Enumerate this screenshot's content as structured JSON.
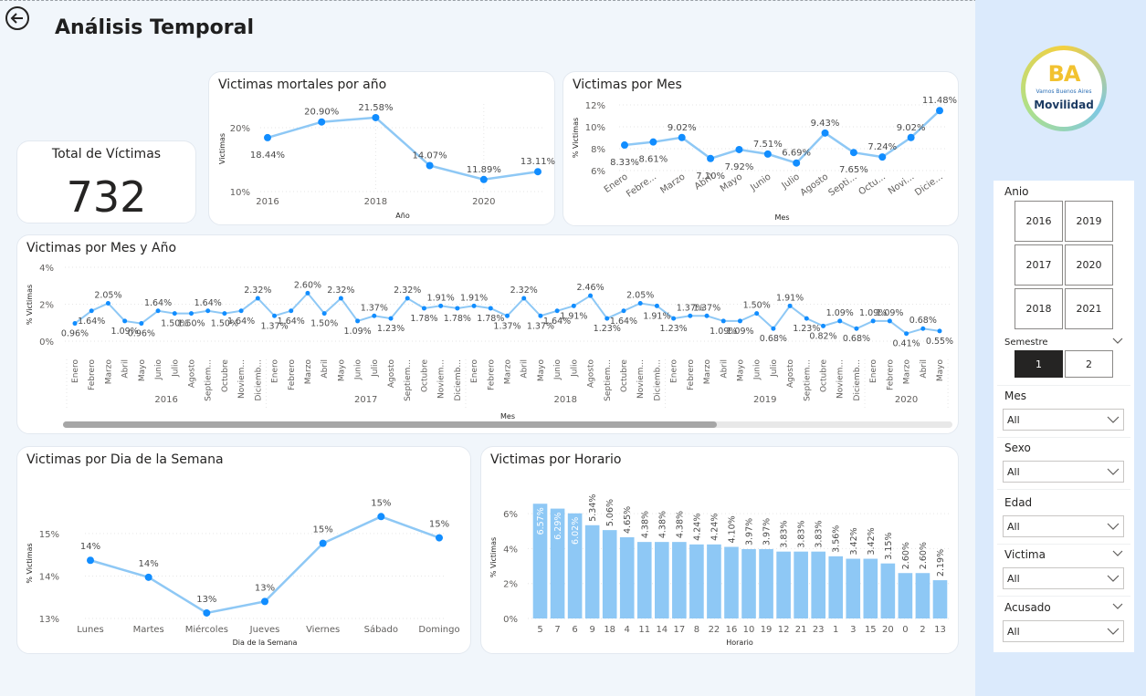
{
  "page": {
    "title": "Análisis Temporal"
  },
  "kpi": {
    "label": "Total de Víctimas",
    "value": "732"
  },
  "colors": {
    "line": "#8ec8f5",
    "marker": "#118dff",
    "bar": "#8ec8f5",
    "side_bg": "#dbeafc"
  },
  "logo": {
    "text": "BA",
    "subtitle": "Vamos Buenos Aires",
    "name": "Movilidad"
  },
  "slicers": {
    "anio": {
      "label": "Anio",
      "years": [
        "2016",
        "2019",
        "2017",
        "2020",
        "2018",
        "2021"
      ]
    },
    "semestre": {
      "label": "Semestre",
      "options": [
        "1",
        "2"
      ],
      "selected": "1"
    },
    "mes": {
      "label": "Mes",
      "value": "All"
    },
    "sexo": {
      "label": "Sexo",
      "value": "All"
    },
    "edad": {
      "label": "Edad",
      "value": "All"
    },
    "victima": {
      "label": "Victima",
      "value": "All"
    },
    "acusado": {
      "label": "Acusado",
      "value": "All"
    }
  },
  "chart_data": [
    {
      "id": "year",
      "type": "line",
      "title": "Victimas mortales por año",
      "xlabel": "Año",
      "ylabel": "Victimas",
      "x": [
        "2016",
        "2017",
        "2018",
        "2019",
        "2020",
        "2021"
      ],
      "xticks": [
        "2016",
        "2018",
        "2020"
      ],
      "values": [
        18.44,
        20.9,
        21.58,
        14.07,
        11.89,
        13.11
      ],
      "labels": [
        "18.44%",
        "20.90%",
        "21.58%",
        "14.07%",
        "11.89%",
        "13.11%"
      ],
      "yticks": [
        "10%",
        "20%"
      ],
      "ylim": [
        10,
        23
      ]
    },
    {
      "id": "month",
      "type": "line",
      "title": "Victimas por Mes",
      "xlabel": "Mes",
      "ylabel": "% Victimas",
      "categories": [
        "Enero",
        "Febre...",
        "Marzo",
        "Abril",
        "Mayo",
        "Junio",
        "Julio",
        "Agosto",
        "Septi...",
        "Octu...",
        "Novi...",
        "Dicie..."
      ],
      "values": [
        8.33,
        8.61,
        9.02,
        7.1,
        7.92,
        7.51,
        6.69,
        9.43,
        7.65,
        7.24,
        9.02,
        11.48
      ],
      "labels": [
        "8.33%",
        "8.61%",
        "9.02%",
        "7.10%",
        "7.92%",
        "7.51%",
        "6.69%",
        "9.43%",
        "7.65%",
        "7.24%",
        "9.02%",
        "11.48%"
      ],
      "yticks": [
        "6%",
        "8%",
        "10%",
        "12%"
      ],
      "ylim": [
        6,
        12
      ]
    },
    {
      "id": "monthyear",
      "type": "line",
      "title": "Victimas por Mes y Año",
      "xlabel": "Mes",
      "ylabel": "% Victimas",
      "categories": [
        "Enero",
        "Febrero",
        "Marzo",
        "Abril",
        "Mayo",
        "Junio",
        "Julio",
        "Agosto",
        "Septiem...",
        "Octubre",
        "Noviem...",
        "Diciemb...",
        "Enero",
        "Febrero",
        "Marzo",
        "Abril",
        "Mayo",
        "Junio",
        "Julio",
        "Agosto",
        "Septiem...",
        "Octubre",
        "Noviem...",
        "Diciemb...",
        "Enero",
        "Febrero",
        "Marzo",
        "Abril",
        "Mayo",
        "Junio",
        "Julio",
        "Agosto",
        "Septiem...",
        "Octubre",
        "Noviem...",
        "Diciemb...",
        "Enero",
        "Febrero",
        "Marzo",
        "Abril",
        "Mayo",
        "Junio",
        "Julio",
        "Agosto",
        "Septiem...",
        "Octubre",
        "Noviem...",
        "Diciemb...",
        "Enero",
        "Febrero",
        "Marzo",
        "Abril",
        "Mayo"
      ],
      "values": [
        0.96,
        1.64,
        2.05,
        1.09,
        0.96,
        1.64,
        1.5,
        1.5,
        1.64,
        1.5,
        1.64,
        2.32,
        1.37,
        1.64,
        2.6,
        1.5,
        2.32,
        1.09,
        1.37,
        1.23,
        2.32,
        1.78,
        1.91,
        1.78,
        1.91,
        1.78,
        1.37,
        2.32,
        1.37,
        1.64,
        1.91,
        2.46,
        1.23,
        1.64,
        2.05,
        1.91,
        1.23,
        1.37,
        1.37,
        1.09,
        1.09,
        1.5,
        0.68,
        1.91,
        1.23,
        0.82,
        1.09,
        0.68,
        1.09,
        1.09,
        0.41,
        0.68,
        0.55
      ],
      "labels": [
        "0.96%",
        "1.64%",
        "2.05%",
        "1.09%",
        "0.96%",
        "1.64%",
        "1.50%",
        "1.50%",
        "1.64%",
        "1.50%",
        "1.64%",
        "2.32%",
        "1.37%",
        "1.64%",
        "2.60%",
        "1.50%",
        "2.32%",
        "1.09%",
        "1.37%",
        "1.23%",
        "2.32%",
        "1.78%",
        "1.91%",
        "1.78%",
        "1.91%",
        "1.78%",
        "1.37%",
        "2.32%",
        "1.37%",
        "1.64%",
        "1.91%",
        "2.46%",
        "1.23%",
        "1.64%",
        "2.05%",
        "1.91%",
        "1.23%",
        "1.37%",
        "1.37%",
        "1.09%",
        "1.09%",
        "1.50%",
        "0.68%",
        "1.91%",
        "1.23%",
        "0.82%",
        "1.09%",
        "0.68%",
        "1.09%",
        "1.09%",
        "0.41%",
        "0.68%",
        "0.55%"
      ],
      "years": [
        "2016",
        "2017",
        "2018",
        "2019",
        "2020"
      ],
      "yticks": [
        "0%",
        "2%",
        "4%"
      ],
      "ylim": [
        0,
        4
      ]
    },
    {
      "id": "weekday",
      "type": "line",
      "title": "Victimas por Dia de la Semana",
      "xlabel": "Dia de la Semana",
      "ylabel": "% Victimas",
      "categories": [
        "Lunes",
        "Martes",
        "Miércoles",
        "Jueves",
        "Viernes",
        "Sábado",
        "Domingo"
      ],
      "values": [
        14.37,
        13.97,
        13.13,
        13.4,
        14.77,
        15.4,
        14.9
      ],
      "labels": [
        "14%",
        "14%",
        "13%",
        "13%",
        "15%",
        "15%",
        "15%"
      ],
      "yticks": [
        "13%",
        "14%",
        "15%"
      ],
      "ylim": [
        13,
        15.6
      ]
    },
    {
      "id": "hour",
      "type": "bar",
      "title": "Victimas por Horario",
      "xlabel": "Horario",
      "ylabel": "% Victimas",
      "categories": [
        "5",
        "7",
        "6",
        "9",
        "18",
        "4",
        "11",
        "14",
        "17",
        "8",
        "22",
        "16",
        "10",
        "19",
        "12",
        "21",
        "23",
        "1",
        "3",
        "15",
        "20",
        "0",
        "2",
        "13"
      ],
      "values": [
        6.57,
        6.29,
        6.02,
        5.34,
        5.06,
        4.65,
        4.38,
        4.38,
        4.38,
        4.24,
        4.24,
        4.1,
        3.97,
        3.97,
        3.83,
        3.83,
        3.83,
        3.56,
        3.42,
        3.42,
        3.15,
        2.6,
        2.6,
        2.19
      ],
      "labels": [
        "6.57%",
        "6.29%",
        "6.02%",
        "5.34%",
        "5.06%",
        "4.65%",
        "4.38%",
        "4.38%",
        "4.38%",
        "4.24%",
        "4.24%",
        "4.10%",
        "3.97%",
        "3.97%",
        "3.83%",
        "3.83%",
        "3.83%",
        "3.56%",
        "3.42%",
        "3.42%",
        "3.15%",
        "2.60%",
        "2.60%",
        "2.19%"
      ],
      "yticks": [
        "0%",
        "2%",
        "4%",
        "6%"
      ],
      "ylim": [
        0,
        7
      ]
    }
  ]
}
